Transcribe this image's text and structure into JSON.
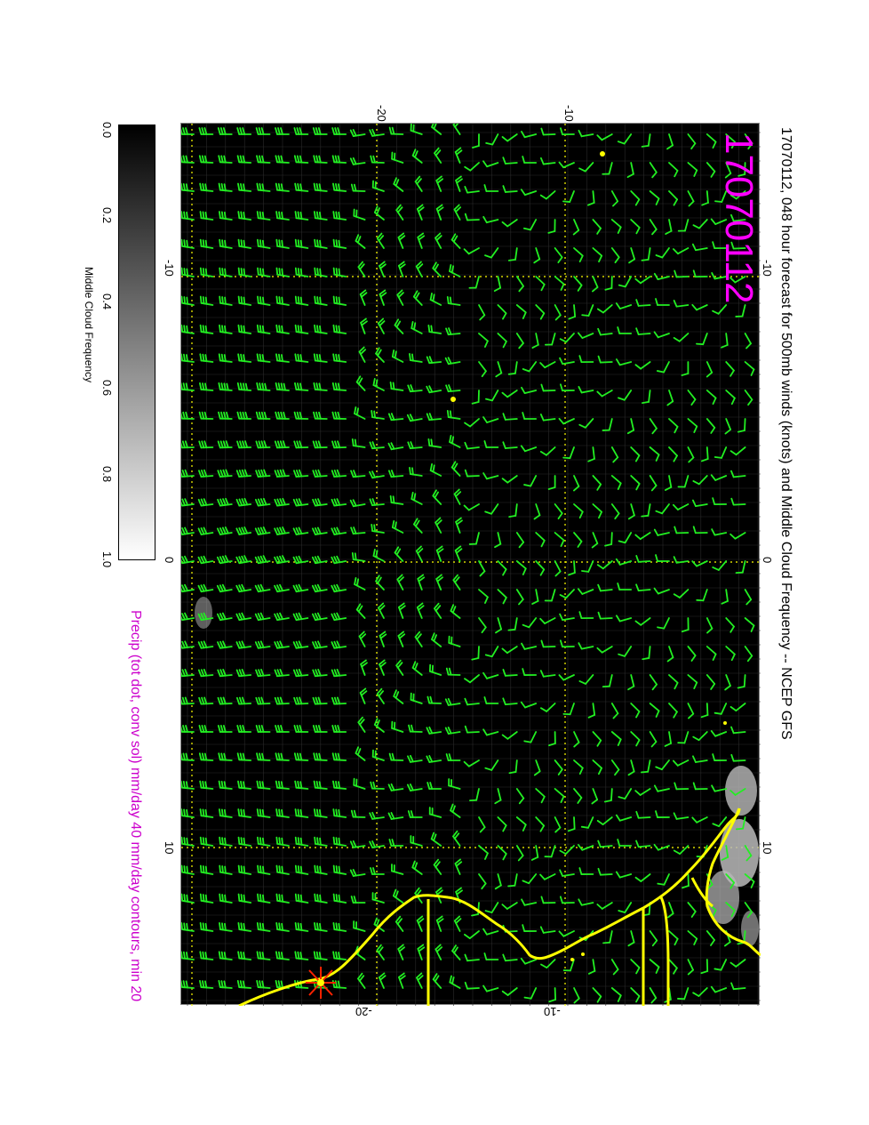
{
  "title": "17070112, 048 hour forecast for 500mb winds (knots) and Middle Cloud Frequency -- NCEP GFS",
  "date_stamp": "17070112",
  "precip_label": "Precip (tot dot, conv sol) mm/day 40 mm/day contours, min 20",
  "colorbar": {
    "label": "Middle Cloud Frequency",
    "ticks": [
      "0.0",
      "0.2",
      "0.4",
      "0.6",
      "0.8",
      "1.0"
    ]
  },
  "axis_top": [
    "-20",
    "-10"
  ],
  "axis_bottom": [
    "-20",
    "-10"
  ],
  "axis_left": [
    "-10",
    "0",
    "10"
  ],
  "axis_right": [
    "-10",
    "0",
    "10"
  ],
  "colors": {
    "background": "#000000",
    "wind_barbs": "#22ee22",
    "coastline": "#ffff00",
    "grid": "#ffff00",
    "title": "#000000",
    "date_stamp": "#ff00ff",
    "precip_label": "#cc00cc"
  },
  "map_style": "wind barbs over gridded cloud frequency field"
}
